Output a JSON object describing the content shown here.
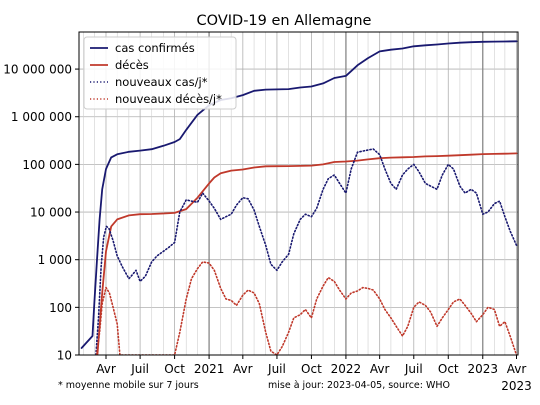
{
  "chart_data": {
    "type": "line",
    "title": "COVID-19 en Allemagne",
    "xlabel": "",
    "ylabel": "",
    "y_scale": "log",
    "ylim": [
      10,
      60000000
    ],
    "xlim": [
      "2020-01-20",
      "2023-04-05"
    ],
    "grid": true,
    "legend_position": "top-left",
    "y_ticks": [
      {
        "value": 10,
        "label": "10"
      },
      {
        "value": 100,
        "label": "100"
      },
      {
        "value": 1000,
        "label": "1 000"
      },
      {
        "value": 10000,
        "label": "10 000"
      },
      {
        "value": 100000,
        "label": "100 000"
      },
      {
        "value": 1000000,
        "label": "1 000 000"
      },
      {
        "value": 10000000,
        "label": "10 000 000"
      }
    ],
    "x_ticks": [
      {
        "date": "2020-04-01",
        "label": "Avr"
      },
      {
        "date": "2020-07-01",
        "label": "Juil"
      },
      {
        "date": "2020-10-01",
        "label": "Oct"
      },
      {
        "date": "2021-01-01",
        "label": "2021"
      },
      {
        "date": "2021-04-01",
        "label": "Avr"
      },
      {
        "date": "2021-07-01",
        "label": "Juil"
      },
      {
        "date": "2021-10-01",
        "label": "Oct"
      },
      {
        "date": "2022-01-01",
        "label": "2022"
      },
      {
        "date": "2022-04-01",
        "label": "Avr"
      },
      {
        "date": "2022-07-01",
        "label": "Juil"
      },
      {
        "date": "2022-10-01",
        "label": "Oct"
      },
      {
        "date": "2023-01-01",
        "label": "2023"
      },
      {
        "date": "2023-04-01",
        "label": "Avr"
      }
    ],
    "x_tick_sublabel": "2023",
    "series": [
      {
        "name": "cas confirmés",
        "color": "#191970",
        "style": "solid",
        "x": [
          "2020-01-27",
          "2020-02-25",
          "2020-03-01",
          "2020-03-08",
          "2020-03-15",
          "2020-03-22",
          "2020-04-01",
          "2020-04-15",
          "2020-05-01",
          "2020-06-01",
          "2020-07-01",
          "2020-08-01",
          "2020-09-01",
          "2020-10-01",
          "2020-10-15",
          "2020-11-01",
          "2020-12-01",
          "2021-01-01",
          "2021-02-01",
          "2021-03-01",
          "2021-04-01",
          "2021-05-01",
          "2021-06-01",
          "2021-07-01",
          "2021-08-01",
          "2021-09-01",
          "2021-10-01",
          "2021-11-01",
          "2021-12-01",
          "2022-01-01",
          "2022-02-01",
          "2022-03-01",
          "2022-04-01",
          "2022-05-01",
          "2022-06-01",
          "2022-07-01",
          "2022-08-01",
          "2022-09-01",
          "2022-10-01",
          "2022-11-01",
          "2022-12-01",
          "2023-01-01",
          "2023-02-01",
          "2023-03-01",
          "2023-04-01"
        ],
        "y": [
          14,
          25,
          130,
          1000,
          7000,
          30000,
          80000,
          140000,
          163000,
          184000,
          195000,
          208000,
          245000,
          295000,
          340000,
          530000,
          1100000,
          1750000,
          2250000,
          2450000,
          2850000,
          3500000,
          3710000,
          3740000,
          3800000,
          4100000,
          4310000,
          5000000,
          6500000,
          7200000,
          12000000,
          17000000,
          23500000,
          25500000,
          27000000,
          30000000,
          31500000,
          32800000,
          34500000,
          35700000,
          36700000,
          37300000,
          37800000,
          38000000,
          38200000
        ]
      },
      {
        "name": "décès",
        "color": "#c0392b",
        "style": "solid",
        "x": [
          "2020-03-09",
          "2020-03-15",
          "2020-03-22",
          "2020-04-01",
          "2020-04-15",
          "2020-05-01",
          "2020-06-01",
          "2020-07-01",
          "2020-08-01",
          "2020-09-01",
          "2020-10-01",
          "2020-11-01",
          "2020-12-01",
          "2021-01-01",
          "2021-01-15",
          "2021-02-01",
          "2021-03-01",
          "2021-04-01",
          "2021-05-01",
          "2021-06-01",
          "2021-07-01",
          "2021-08-01",
          "2021-09-01",
          "2021-10-01",
          "2021-11-01",
          "2021-12-01",
          "2022-01-01",
          "2022-02-01",
          "2022-03-01",
          "2022-04-01",
          "2022-05-01",
          "2022-06-01",
          "2022-07-01",
          "2022-08-01",
          "2022-09-01",
          "2022-10-01",
          "2022-11-01",
          "2022-12-01",
          "2023-01-01",
          "2023-02-01",
          "2023-03-01",
          "2023-04-01"
        ],
        "y": [
          10,
          40,
          200,
          1500,
          5000,
          7000,
          8500,
          9000,
          9100,
          9300,
          9600,
          11500,
          20000,
          40000,
          53000,
          65000,
          74000,
          78000,
          86000,
          91000,
          91500,
          92000,
          93000,
          94500,
          100000,
          112000,
          115000,
          120000,
          127000,
          135000,
          139000,
          141000,
          143000,
          147000,
          149000,
          152000,
          156000,
          160000,
          164000,
          166000,
          168000,
          170000
        ]
      },
      {
        "name": "nouveaux cas/j*",
        "color": "#191970",
        "style": "dotted",
        "x": [
          "2020-03-05",
          "2020-03-12",
          "2020-03-19",
          "2020-03-26",
          "2020-04-02",
          "2020-04-09",
          "2020-04-20",
          "2020-05-01",
          "2020-05-15",
          "2020-06-01",
          "2020-06-12",
          "2020-06-20",
          "2020-07-01",
          "2020-07-15",
          "2020-08-01",
          "2020-08-15",
          "2020-09-01",
          "2020-09-15",
          "2020-10-01",
          "2020-10-15",
          "2020-11-01",
          "2020-11-15",
          "2020-12-01",
          "2020-12-15",
          "2021-01-01",
          "2021-01-15",
          "2021-02-01",
          "2021-02-15",
          "2021-03-01",
          "2021-03-15",
          "2021-04-01",
          "2021-04-15",
          "2021-05-01",
          "2021-05-15",
          "2021-06-01",
          "2021-06-15",
          "2021-07-01",
          "2021-07-15",
          "2021-08-01",
          "2021-08-15",
          "2021-09-01",
          "2021-09-15",
          "2021-10-01",
          "2021-10-15",
          "2021-11-01",
          "2021-11-15",
          "2021-12-01",
          "2021-12-15",
          "2022-01-01",
          "2022-01-15",
          "2022-02-01",
          "2022-02-15",
          "2022-03-01",
          "2022-03-15",
          "2022-04-01",
          "2022-04-15",
          "2022-05-01",
          "2022-05-15",
          "2022-06-01",
          "2022-06-15",
          "2022-07-01",
          "2022-07-15",
          "2022-08-01",
          "2022-08-15",
          "2022-09-01",
          "2022-09-15",
          "2022-10-01",
          "2022-10-15",
          "2022-11-01",
          "2022-11-15",
          "2022-12-01",
          "2022-12-15",
          "2023-01-01",
          "2023-01-15",
          "2023-02-01",
          "2023-02-15",
          "2023-03-01",
          "2023-03-15",
          "2023-04-01"
        ],
        "y": [
          10,
          60,
          700,
          3000,
          5000,
          4500,
          2500,
          1200,
          700,
          400,
          500,
          600,
          350,
          450,
          900,
          1200,
          1500,
          1800,
          2300,
          10000,
          18000,
          17000,
          16000,
          25000,
          17000,
          12000,
          7000,
          8000,
          9000,
          14000,
          20000,
          19000,
          11000,
          5000,
          2000,
          800,
          600,
          900,
          1300,
          3500,
          7000,
          9000,
          8000,
          12000,
          30000,
          50000,
          60000,
          40000,
          25000,
          80000,
          180000,
          190000,
          200000,
          210000,
          160000,
          80000,
          40000,
          30000,
          60000,
          80000,
          100000,
          70000,
          40000,
          35000,
          30000,
          60000,
          100000,
          80000,
          35000,
          25000,
          30000,
          25000,
          9000,
          10000,
          15000,
          17000,
          8000,
          4000,
          2000
        ]
      },
      {
        "name": "nouveaux décès/j*",
        "color": "#c0392b",
        "style": "dotted",
        "x": [
          "2020-03-07",
          "2020-03-15",
          "2020-03-22",
          "2020-04-01",
          "2020-04-10",
          "2020-04-20",
          "2020-05-01",
          "2020-05-08",
          "2020-10-01",
          "2020-10-15",
          "2020-11-01",
          "2020-11-15",
          "2020-12-01",
          "2020-12-15",
          "2021-01-01",
          "2021-01-15",
          "2021-02-01",
          "2021-02-15",
          "2021-03-01",
          "2021-03-15",
          "2021-04-01",
          "2021-04-15",
          "2021-05-01",
          "2021-05-15",
          "2021-06-01",
          "2021-06-15",
          "2021-07-01",
          "2021-07-15",
          "2021-08-01",
          "2021-08-15",
          "2021-09-01",
          "2021-09-15",
          "2021-10-01",
          "2021-10-15",
          "2021-11-01",
          "2021-11-15",
          "2021-12-01",
          "2021-12-15",
          "2022-01-01",
          "2022-01-15",
          "2022-02-01",
          "2022-02-15",
          "2022-03-01",
          "2022-03-15",
          "2022-04-01",
          "2022-04-15",
          "2022-05-01",
          "2022-05-15",
          "2022-06-01",
          "2022-06-15",
          "2022-07-01",
          "2022-07-15",
          "2022-08-01",
          "2022-08-15",
          "2022-09-01",
          "2022-09-15",
          "2022-10-01",
          "2022-10-15",
          "2022-11-01",
          "2022-11-15",
          "2022-12-01",
          "2022-12-15",
          "2023-01-01",
          "2023-01-15",
          "2023-02-01",
          "2023-02-15",
          "2023-03-01",
          "2023-03-15",
          "2023-04-01"
        ],
        "y": [
          10,
          30,
          120,
          260,
          200,
          100,
          45,
          10,
          10,
          30,
          150,
          400,
          650,
          900,
          850,
          600,
          250,
          150,
          140,
          110,
          180,
          230,
          200,
          120,
          30,
          12,
          10,
          15,
          30,
          60,
          70,
          90,
          60,
          150,
          280,
          420,
          350,
          230,
          150,
          200,
          220,
          260,
          250,
          230,
          150,
          90,
          60,
          40,
          25,
          40,
          100,
          130,
          110,
          80,
          40,
          60,
          90,
          130,
          150,
          110,
          75,
          50,
          70,
          100,
          90,
          40,
          50,
          25,
          10
        ]
      }
    ],
    "footnote": "* moyenne mobile sur 7 jours",
    "source": "mise à jour: 2023-04-05, source: WHO"
  }
}
